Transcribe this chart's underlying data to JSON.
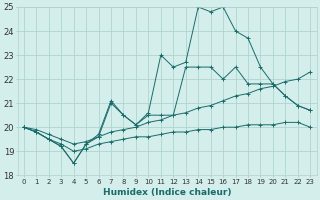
{
  "xlabel": "Humidex (Indice chaleur)",
  "bg_color": "#d4eeeb",
  "grid_color": "#aed4d0",
  "line_color": "#1a6b6b",
  "xlim": [
    -0.5,
    23.5
  ],
  "ylim": [
    18,
    25
  ],
  "yticks": [
    18,
    19,
    20,
    21,
    22,
    23,
    24,
    25
  ],
  "xticks": [
    0,
    1,
    2,
    3,
    4,
    5,
    6,
    7,
    8,
    9,
    10,
    11,
    12,
    13,
    14,
    15,
    16,
    17,
    18,
    19,
    20,
    21,
    22,
    23
  ],
  "lines": [
    {
      "x": [
        0,
        1,
        2,
        3,
        4,
        5,
        6,
        7,
        8,
        9,
        10,
        11,
        12,
        13,
        14,
        15,
        16,
        17,
        18,
        19,
        20,
        21,
        22,
        23
      ],
      "y": [
        20.0,
        19.8,
        19.5,
        19.2,
        18.5,
        19.3,
        19.7,
        21.1,
        20.5,
        20.1,
        20.6,
        23.0,
        22.5,
        22.7,
        25.0,
        24.8,
        25.0,
        24.0,
        23.7,
        22.5,
        21.8,
        21.3,
        20.9,
        20.7
      ]
    },
    {
      "x": [
        0,
        1,
        2,
        3,
        4,
        5,
        6,
        7,
        8,
        9,
        10,
        11,
        12,
        13,
        14,
        15,
        16,
        17,
        18,
        19,
        20,
        21,
        22,
        23
      ],
      "y": [
        20.0,
        19.8,
        19.5,
        19.2,
        18.5,
        19.3,
        19.6,
        21.0,
        20.5,
        20.1,
        20.5,
        20.5,
        20.5,
        22.5,
        22.5,
        22.5,
        22.0,
        22.5,
        21.8,
        21.8,
        21.8,
        21.3,
        20.9,
        20.7
      ]
    },
    {
      "x": [
        0,
        1,
        2,
        3,
        4,
        5,
        6,
        7,
        8,
        9,
        10,
        11,
        12,
        13,
        14,
        15,
        16,
        17,
        18,
        19,
        20,
        21,
        22,
        23
      ],
      "y": [
        20.0,
        19.9,
        19.7,
        19.5,
        19.3,
        19.4,
        19.6,
        19.8,
        19.9,
        20.0,
        20.2,
        20.3,
        20.5,
        20.6,
        20.8,
        20.9,
        21.1,
        21.3,
        21.4,
        21.6,
        21.7,
        21.9,
        22.0,
        22.3
      ]
    },
    {
      "x": [
        0,
        1,
        2,
        3,
        4,
        5,
        6,
        7,
        8,
        9,
        10,
        11,
        12,
        13,
        14,
        15,
        16,
        17,
        18,
        19,
        20,
        21,
        22,
        23
      ],
      "y": [
        20.0,
        19.8,
        19.5,
        19.3,
        19.0,
        19.1,
        19.3,
        19.4,
        19.5,
        19.6,
        19.6,
        19.7,
        19.8,
        19.8,
        19.9,
        19.9,
        20.0,
        20.0,
        20.1,
        20.1,
        20.1,
        20.2,
        20.2,
        20.0
      ]
    }
  ]
}
